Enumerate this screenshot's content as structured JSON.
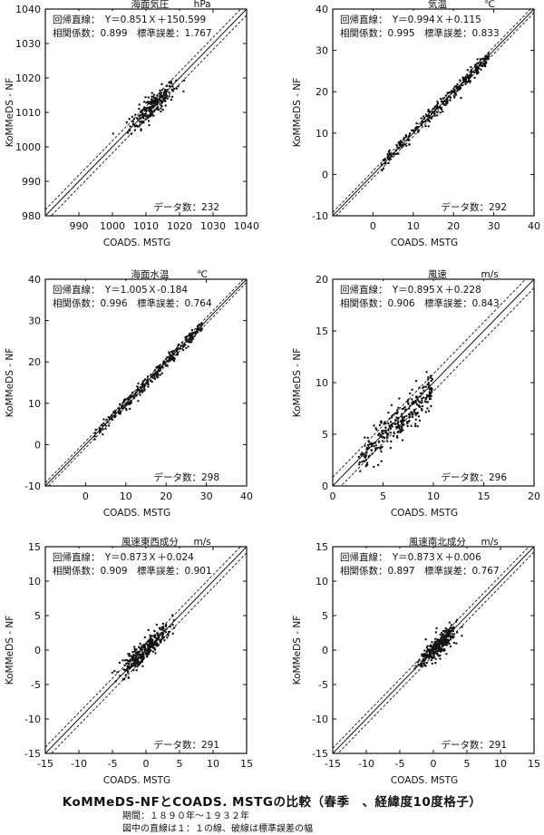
{
  "chart_data": [
    {
      "type": "scatter",
      "title": "海面気圧",
      "unit": "hPa",
      "xlabel": "COADS. MSTG",
      "ylabel": "KoMMeDS - NF",
      "xlim": [
        980,
        1040
      ],
      "ylim": [
        980,
        1040
      ],
      "xticks": [
        990,
        1000,
        1010,
        1020,
        1030,
        1040
      ],
      "yticks": [
        980,
        990,
        1000,
        1010,
        1020,
        1030,
        1040
      ],
      "regression_text": "回帰直線：　Y＝0.851Ｘ＋150.599",
      "stats_text": "相関係数：0.899　標準誤差：1.767",
      "count_text": "データ数：232",
      "n": 232,
      "slope": 0.851,
      "intercept": 150.599,
      "r": 0.899,
      "se": 1.767,
      "cluster": {
        "center": [
          1012,
          1012
        ],
        "spread": [
          4.5,
          4
        ]
      }
    },
    {
      "type": "scatter",
      "title": "気温",
      "unit": "℃",
      "xlabel": "COADS. MSTG",
      "ylabel": "KoMMeDS - NF",
      "xlim": [
        -10,
        40
      ],
      "ylim": [
        -10,
        40
      ],
      "xticks": [
        0,
        10,
        20,
        30,
        40
      ],
      "yticks": [
        -10,
        0,
        10,
        20,
        30,
        40
      ],
      "regression_text": "回帰直線：　Y＝0.994Ｘ＋0.115",
      "stats_text": "相関係数：0.995　標準誤差：0.833",
      "count_text": "データ数：292",
      "n": 292,
      "slope": 0.994,
      "intercept": 0.115,
      "r": 0.995,
      "se": 0.833,
      "cluster": {
        "range": [
          2,
          29
        ]
      }
    },
    {
      "type": "scatter",
      "title": "海面水温",
      "unit": "℃",
      "xlabel": "COADS. MSTG",
      "ylabel": "KoMMeDS - NF",
      "xlim": [
        -10,
        40
      ],
      "ylim": [
        -10,
        40
      ],
      "xticks": [
        0,
        10,
        20,
        30,
        40
      ],
      "yticks": [
        -10,
        0,
        10,
        20,
        30,
        40
      ],
      "regression_text": "回帰直線：　Y＝1.005Ｘ-0.184",
      "stats_text": "相関係数：0.996　標準誤差：0.764",
      "count_text": "データ数：298",
      "n": 298,
      "slope": 1.005,
      "intercept": -0.184,
      "r": 0.996,
      "se": 0.764,
      "cluster": {
        "range": [
          2,
          29
        ]
      }
    },
    {
      "type": "scatter",
      "title": "風速",
      "unit": "m/s",
      "xlabel": "COADS. MSTG",
      "ylabel": "KoMMeDS - NF",
      "xlim": [
        0,
        20
      ],
      "ylim": [
        0,
        20
      ],
      "xticks": [
        0,
        5,
        10,
        15,
        20
      ],
      "yticks": [
        0,
        5,
        10,
        15,
        20
      ],
      "regression_text": "回帰直線：　Y＝0.895Ｘ＋0.228",
      "stats_text": "相関係数：0.906　標準誤差：0.843",
      "count_text": "データ数：296",
      "n": 296,
      "slope": 0.895,
      "intercept": 0.228,
      "r": 0.906,
      "se": 0.843,
      "cluster": {
        "range": [
          2.5,
          10
        ]
      }
    },
    {
      "type": "scatter",
      "title": "風速東西成分",
      "unit": "m/s",
      "xlabel": "COADS. MSTG",
      "ylabel": "KoMMeDS - NF",
      "xlim": [
        -15,
        15
      ],
      "ylim": [
        -15,
        15
      ],
      "xticks": [
        -15,
        -10,
        -5,
        0,
        5,
        10,
        15
      ],
      "yticks": [
        -15,
        -10,
        -5,
        0,
        5,
        10,
        15
      ],
      "regression_text": "回帰直線：　Y＝0.873Ｘ＋0.024",
      "stats_text": "相関係数：0.909　標準誤差：0.901",
      "count_text": "データ数：291",
      "n": 291,
      "slope": 0.873,
      "intercept": 0.024,
      "r": 0.909,
      "se": 0.901,
      "cluster": {
        "range": [
          -5.5,
          5.5
        ]
      }
    },
    {
      "type": "scatter",
      "title": "風速南北成分",
      "unit": "m/s",
      "xlabel": "COADS. MSTG",
      "ylabel": "KoMMeDS - NF",
      "xlim": [
        -15,
        15
      ],
      "ylim": [
        -15,
        15
      ],
      "xticks": [
        -15,
        -10,
        -5,
        0,
        5,
        10,
        15
      ],
      "yticks": [
        -15,
        -10,
        -5,
        0,
        5,
        10,
        15
      ],
      "regression_text": "回帰直線：　Y＝0.873Ｘ＋0.006",
      "stats_text": "相関係数：0.897　標準誤差：0.767",
      "count_text": "データ数：291",
      "n": 291,
      "slope": 0.873,
      "intercept": 0.006,
      "r": 0.897,
      "se": 0.767,
      "cluster": {
        "range": [
          -3.5,
          5
        ]
      }
    }
  ],
  "caption": {
    "title": "KoMMeDS-NFとCOADS. MSTGの比較（春季　、経緯度10度格子）",
    "period": "期間：１８９０年～１９３２年",
    "note": "図中の直線は１：１の線、破線は標準誤差の幅"
  }
}
